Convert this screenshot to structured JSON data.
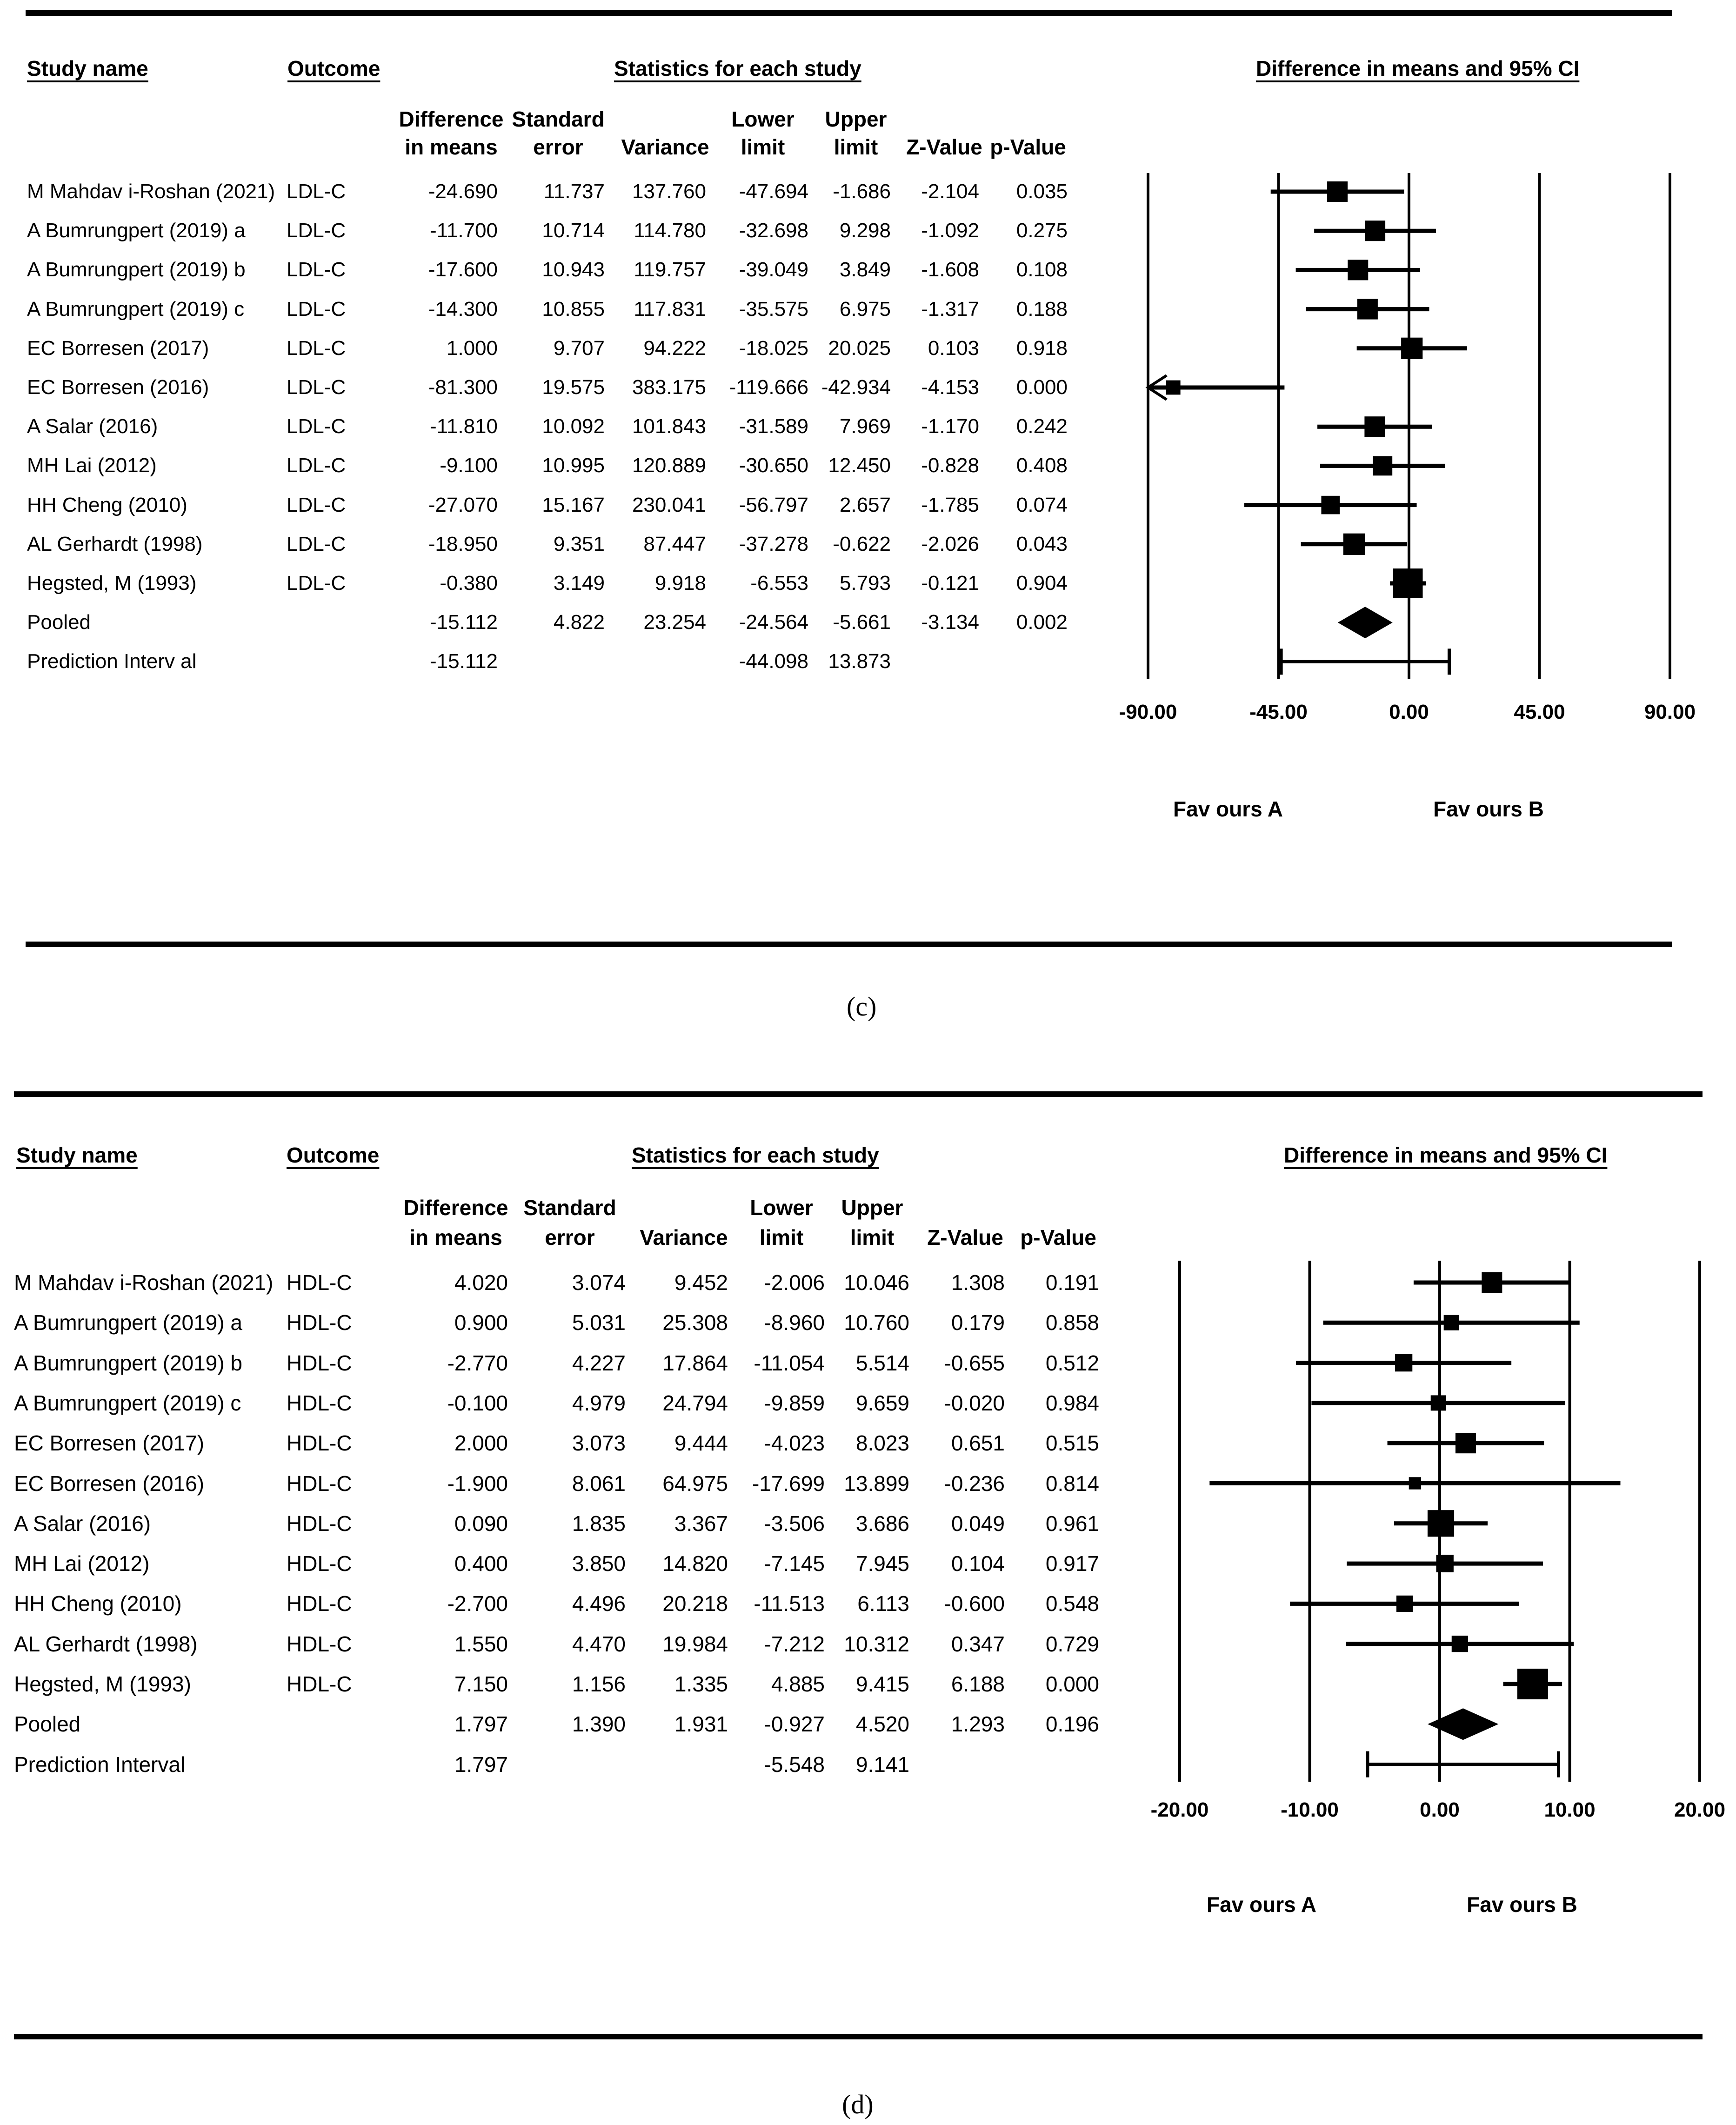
{
  "chart_data": [
    {
      "type": "forest",
      "panel_label": "(c)",
      "header": {
        "study_name": "Study name",
        "outcome": "Outcome",
        "statistics": "Statistics for each study",
        "plot_title": "Difference in means and 95% CI"
      },
      "columns": {
        "diff": [
          "Difference",
          "in means"
        ],
        "se": [
          "Standard",
          "error"
        ],
        "var": [
          "Variance"
        ],
        "lower": [
          "Lower",
          "limit"
        ],
        "upper": [
          "Upper",
          "limit"
        ],
        "z": [
          "Z-Value"
        ],
        "p": [
          "p-Value"
        ]
      },
      "rows": [
        {
          "study": "M Mahdav i-Roshan (2021)",
          "outcome": "LDL-C",
          "diff": "-24.690",
          "se": "11.737",
          "var": "137.760",
          "lower": "-47.694",
          "upper": "-1.686",
          "z": "-2.104",
          "p": "0.035",
          "d": -24.69,
          "lo": -47.694,
          "hi": -1.686,
          "w": 1.0
        },
        {
          "study": "A Bumrungpert (2019) a",
          "outcome": "LDL-C",
          "diff": "-11.700",
          "se": "10.714",
          "var": "114.780",
          "lower": "-32.698",
          "upper": "9.298",
          "z": "-1.092",
          "p": "0.275",
          "d": -11.7,
          "lo": -32.698,
          "hi": 9.298,
          "w": 1.0
        },
        {
          "study": "A Bumrungpert (2019) b",
          "outcome": "LDL-C",
          "diff": "-17.600",
          "se": "10.943",
          "var": "119.757",
          "lower": "-39.049",
          "upper": "3.849",
          "z": "-1.608",
          "p": "0.108",
          "d": -17.6,
          "lo": -39.049,
          "hi": 3.849,
          "w": 1.0
        },
        {
          "study": "A Bumrungpert (2019) c",
          "outcome": "LDL-C",
          "diff": "-14.300",
          "se": "10.855",
          "var": "117.831",
          "lower": "-35.575",
          "upper": "6.975",
          "z": "-1.317",
          "p": "0.188",
          "d": -14.3,
          "lo": -35.575,
          "hi": 6.975,
          "w": 1.0
        },
        {
          "study": "EC Borresen (2017)",
          "outcome": "LDL-C",
          "diff": "1.000",
          "se": "9.707",
          "var": "94.222",
          "lower": "-18.025",
          "upper": "20.025",
          "z": "0.103",
          "p": "0.918",
          "d": 1.0,
          "lo": -18.025,
          "hi": 20.025,
          "w": 1.05
        },
        {
          "study": "EC Borresen (2016)",
          "outcome": "LDL-C",
          "diff": "-81.300",
          "se": "19.575",
          "var": "383.175",
          "lower": "-119.666",
          "upper": "-42.934",
          "z": "-4.153",
          "p": "0.000",
          "d": -81.3,
          "lo": -119.666,
          "hi": -42.934,
          "w": 0.7,
          "arrow_left": true
        },
        {
          "study": "A Salar (2016)",
          "outcome": "LDL-C",
          "diff": "-11.810",
          "se": "10.092",
          "var": "101.843",
          "lower": "-31.589",
          "upper": "7.969",
          "z": "-1.170",
          "p": "0.242",
          "d": -11.81,
          "lo": -31.589,
          "hi": 7.969,
          "w": 1.0
        },
        {
          "study": "MH Lai (2012)",
          "outcome": "LDL-C",
          "diff": "-9.100",
          "se": "10.995",
          "var": "120.889",
          "lower": "-30.650",
          "upper": "12.450",
          "z": "-0.828",
          "p": "0.408",
          "d": -9.1,
          "lo": -30.65,
          "hi": 12.45,
          "w": 0.95
        },
        {
          "study": "HH Cheng (2010)",
          "outcome": "LDL-C",
          "diff": "-27.070",
          "se": "15.167",
          "var": "230.041",
          "lower": "-56.797",
          "upper": "2.657",
          "z": "-1.785",
          "p": "0.074",
          "d": -27.07,
          "lo": -56.797,
          "hi": 2.657,
          "w": 0.9
        },
        {
          "study": "AL Gerhardt (1998)",
          "outcome": "LDL-C",
          "diff": "-18.950",
          "se": "9.351",
          "var": "87.447",
          "lower": "-37.278",
          "upper": "-0.622",
          "z": "-2.026",
          "p": "0.043",
          "d": -18.95,
          "lo": -37.278,
          "hi": -0.622,
          "w": 1.05
        },
        {
          "study": "Hegsted, M (1993)",
          "outcome": "LDL-C",
          "diff": "-0.380",
          "se": "3.149",
          "var": "9.918",
          "lower": "-6.553",
          "upper": "5.793",
          "z": "-0.121",
          "p": "0.904",
          "d": -0.38,
          "lo": -6.553,
          "hi": 5.793,
          "w": 1.45
        }
      ],
      "pooled": {
        "label": "Pooled",
        "diff": "-15.112",
        "se": "4.822",
        "var": "23.254",
        "lower": "-24.564",
        "upper": "-5.661",
        "z": "-3.134",
        "p": "0.002",
        "d": -15.112,
        "lo": -24.564,
        "hi": -5.661
      },
      "prediction": {
        "label": "Prediction Interv al",
        "diff": "-15.112",
        "lower": "-44.098",
        "upper": "13.873",
        "lo": -44.098,
        "hi": 13.873
      },
      "axis": {
        "min": -90,
        "max": 90,
        "ticks": [
          -90,
          -45,
          0,
          45,
          90
        ],
        "tick_labels": [
          "-90.00",
          "-45.00",
          "0.00",
          "45.00",
          "90.00"
        ]
      },
      "favours": {
        "left": "Fav ours A",
        "right": "Fav ours B"
      }
    },
    {
      "type": "forest",
      "panel_label": "(d)",
      "header": {
        "study_name": "Study name",
        "outcome": "Outcome",
        "statistics": "Statistics for each study",
        "plot_title": "Difference in means and 95% CI"
      },
      "columns": {
        "diff": [
          "Difference",
          "in means"
        ],
        "se": [
          "Standard",
          "error"
        ],
        "var": [
          "Variance"
        ],
        "lower": [
          "Lower",
          "limit"
        ],
        "upper": [
          "Upper",
          "limit"
        ],
        "z": [
          "Z-Value"
        ],
        "p": [
          "p-Value"
        ]
      },
      "rows": [
        {
          "study": "M Mahdav i-Roshan (2021)",
          "outcome": "HDL-C",
          "diff": "4.020",
          "se": "3.074",
          "var": "9.452",
          "lower": "-2.006",
          "upper": "10.046",
          "z": "1.308",
          "p": "0.191",
          "d": 4.02,
          "lo": -2.006,
          "hi": 10.046,
          "w": 1.0
        },
        {
          "study": "A Bumrungpert (2019) a",
          "outcome": "HDL-C",
          "diff": "0.900",
          "se": "5.031",
          "var": "25.308",
          "lower": "-8.960",
          "upper": "10.760",
          "z": "0.179",
          "p": "0.858",
          "d": 0.9,
          "lo": -8.96,
          "hi": 10.76,
          "w": 0.75
        },
        {
          "study": "A Bumrungpert (2019) b",
          "outcome": "HDL-C",
          "diff": "-2.770",
          "se": "4.227",
          "var": "17.864",
          "lower": "-11.054",
          "upper": "5.514",
          "z": "-0.655",
          "p": "0.512",
          "d": -2.77,
          "lo": -11.054,
          "hi": 5.514,
          "w": 0.85
        },
        {
          "study": "A Bumrungpert (2019) c",
          "outcome": "HDL-C",
          "diff": "-0.100",
          "se": "4.979",
          "var": "24.794",
          "lower": "-9.859",
          "upper": "9.659",
          "z": "-0.020",
          "p": "0.984",
          "d": -0.1,
          "lo": -9.859,
          "hi": 9.659,
          "w": 0.75
        },
        {
          "study": "EC Borresen (2017)",
          "outcome": "HDL-C",
          "diff": "2.000",
          "se": "3.073",
          "var": "9.444",
          "lower": "-4.023",
          "upper": "8.023",
          "z": "0.651",
          "p": "0.515",
          "d": 2.0,
          "lo": -4.023,
          "hi": 8.023,
          "w": 1.0
        },
        {
          "study": "EC Borresen (2016)",
          "outcome": "HDL-C",
          "diff": "-1.900",
          "se": "8.061",
          "var": "64.975",
          "lower": "-17.699",
          "upper": "13.899",
          "z": "-0.236",
          "p": "0.814",
          "d": -1.9,
          "lo": -17.699,
          "hi": 13.899,
          "w": 0.6
        },
        {
          "study": "A Salar (2016)",
          "outcome": "HDL-C",
          "diff": "0.090",
          "se": "1.835",
          "var": "3.367",
          "lower": "-3.506",
          "upper": "3.686",
          "z": "0.049",
          "p": "0.961",
          "d": 0.09,
          "lo": -3.506,
          "hi": 3.686,
          "w": 1.3
        },
        {
          "study": "MH Lai (2012)",
          "outcome": "HDL-C",
          "diff": "0.400",
          "se": "3.850",
          "var": "14.820",
          "lower": "-7.145",
          "upper": "7.945",
          "z": "0.104",
          "p": "0.917",
          "d": 0.4,
          "lo": -7.145,
          "hi": 7.945,
          "w": 0.85
        },
        {
          "study": "HH Cheng (2010)",
          "outcome": "HDL-C",
          "diff": "-2.700",
          "se": "4.496",
          "var": "20.218",
          "lower": "-11.513",
          "upper": "6.113",
          "z": "-0.600",
          "p": "0.548",
          "d": -2.7,
          "lo": -11.513,
          "hi": 6.113,
          "w": 0.8
        },
        {
          "study": "AL Gerhardt (1998)",
          "outcome": "HDL-C",
          "diff": "1.550",
          "se": "4.470",
          "var": "19.984",
          "lower": "-7.212",
          "upper": "10.312",
          "z": "0.347",
          "p": "0.729",
          "d": 1.55,
          "lo": -7.212,
          "hi": 10.312,
          "w": 0.8
        },
        {
          "study": "Hegsted, M (1993)",
          "outcome": "HDL-C",
          "diff": "7.150",
          "se": "1.156",
          "var": "1.335",
          "lower": "4.885",
          "upper": "9.415",
          "z": "6.188",
          "p": "0.000",
          "d": 7.15,
          "lo": 4.885,
          "hi": 9.415,
          "w": 1.5
        }
      ],
      "pooled": {
        "label": "Pooled",
        "diff": "1.797",
        "se": "1.390",
        "var": "1.931",
        "lower": "-0.927",
        "upper": "4.520",
        "z": "1.293",
        "p": "0.196",
        "d": 1.797,
        "lo": -0.927,
        "hi": 4.52
      },
      "prediction": {
        "label": "Prediction Interval",
        "diff": "1.797",
        "lower": "-5.548",
        "upper": "9.141",
        "lo": -5.548,
        "hi": 9.141
      },
      "axis": {
        "min": -20,
        "max": 20,
        "ticks": [
          -20,
          -10,
          0,
          10,
          20
        ],
        "tick_labels": [
          "-20.00",
          "-10.00",
          "0.00",
          "10.00",
          "20.00"
        ]
      },
      "favours": {
        "left": "Fav ours A",
        "right": "Fav ours B"
      }
    }
  ]
}
